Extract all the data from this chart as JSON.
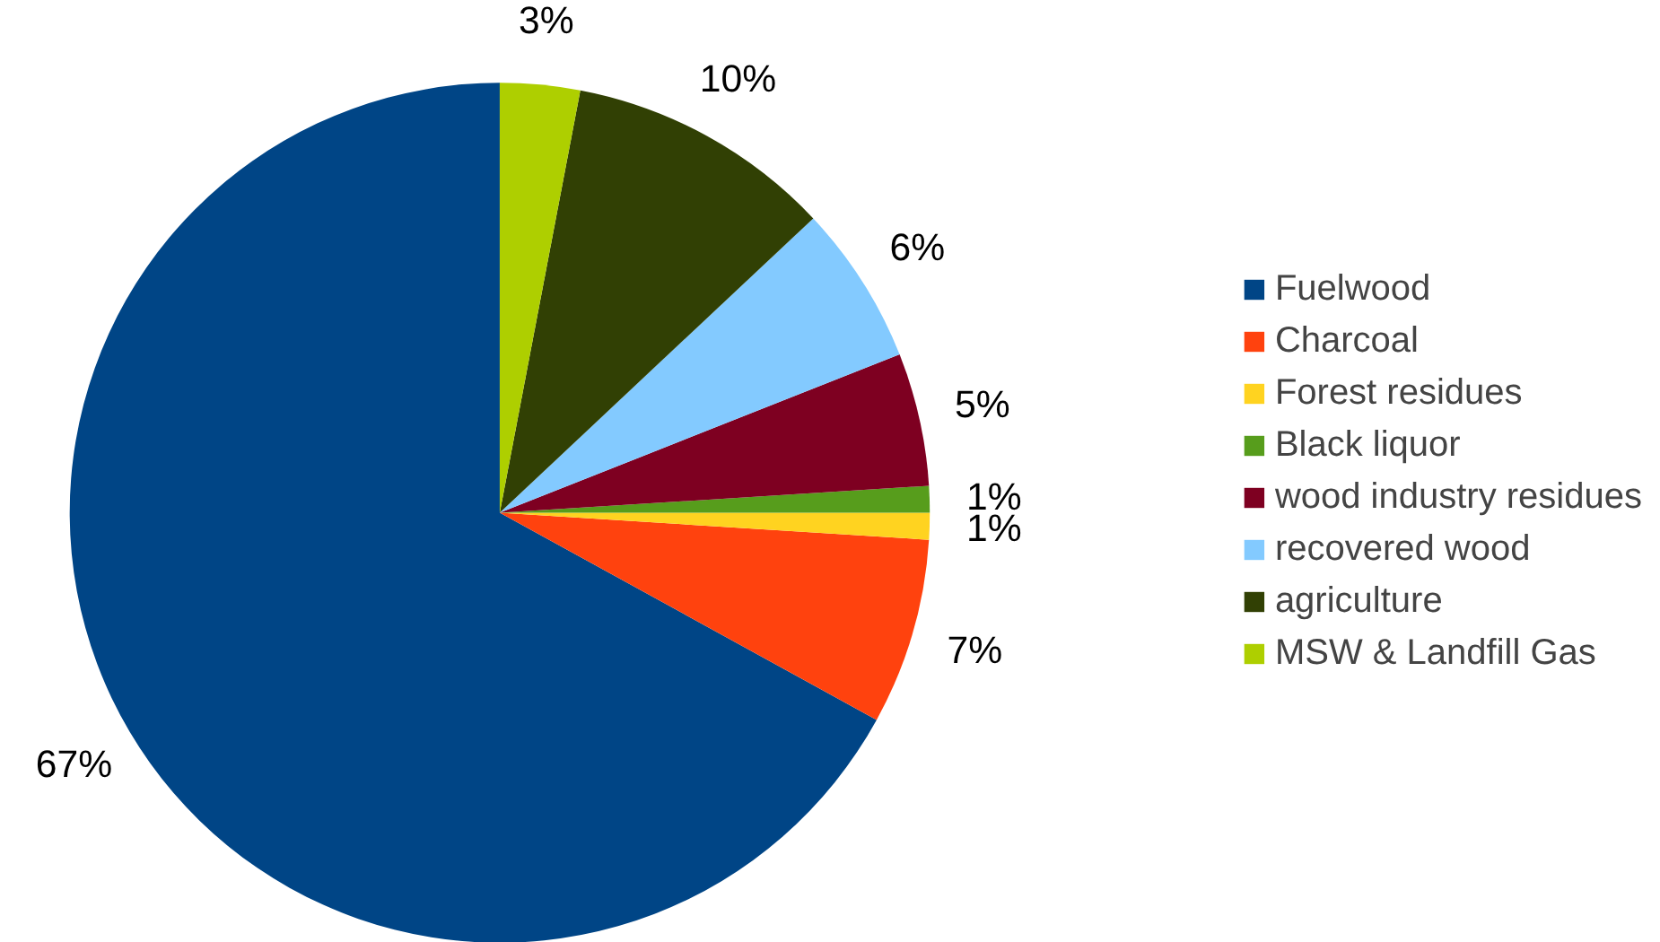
{
  "chart_data": {
    "type": "pie",
    "categories": [
      "Fuelwood",
      "Charcoal",
      "Forest residues",
      "Black liquor",
      "wood industry residues",
      "recovered wood",
      "agriculture",
      "MSW & Landfill Gas"
    ],
    "values": [
      67,
      7,
      1,
      1,
      5,
      6,
      10,
      3
    ],
    "colors": [
      "#004586",
      "#ff420e",
      "#ffd320",
      "#579d1c",
      "#7e0021",
      "#83caff",
      "#314004",
      "#aecf00"
    ],
    "value_labels": [
      "67%",
      "7%",
      "1%",
      "1%",
      "5%",
      "6%",
      "10%",
      "3%"
    ],
    "legend": "right"
  }
}
